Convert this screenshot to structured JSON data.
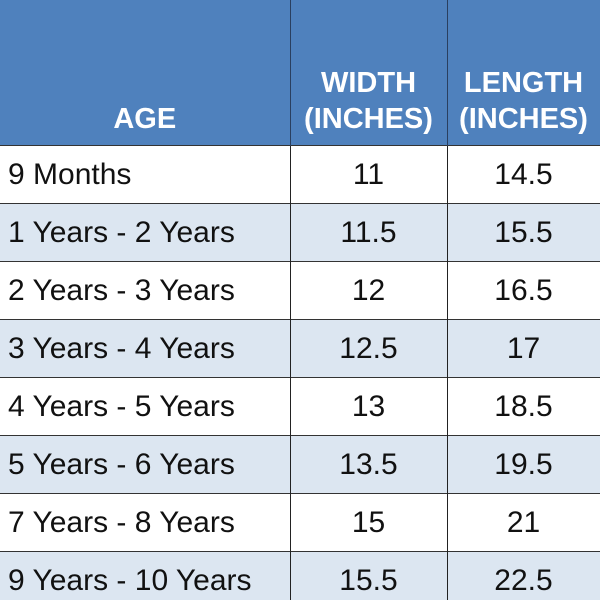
{
  "table": {
    "header": [
      "AGE",
      "WIDTH (INCHES)",
      "LENGTH (INCHES)"
    ],
    "rows": [
      [
        "9 Months",
        11,
        14.5
      ],
      [
        "1 Years - 2 Years",
        11.5,
        15.5
      ],
      [
        "2 Years - 3 Years",
        12,
        16.5
      ],
      [
        "3 Years - 4 Years",
        12.5,
        17
      ],
      [
        "4 Years - 5 Years",
        13,
        18.5
      ],
      [
        "5 Years - 6 Years",
        13.5,
        19.5
      ],
      [
        "7 Years - 8 Years",
        15,
        21
      ],
      [
        "9 Years - 10 Years",
        15.5,
        22.5
      ]
    ]
  }
}
